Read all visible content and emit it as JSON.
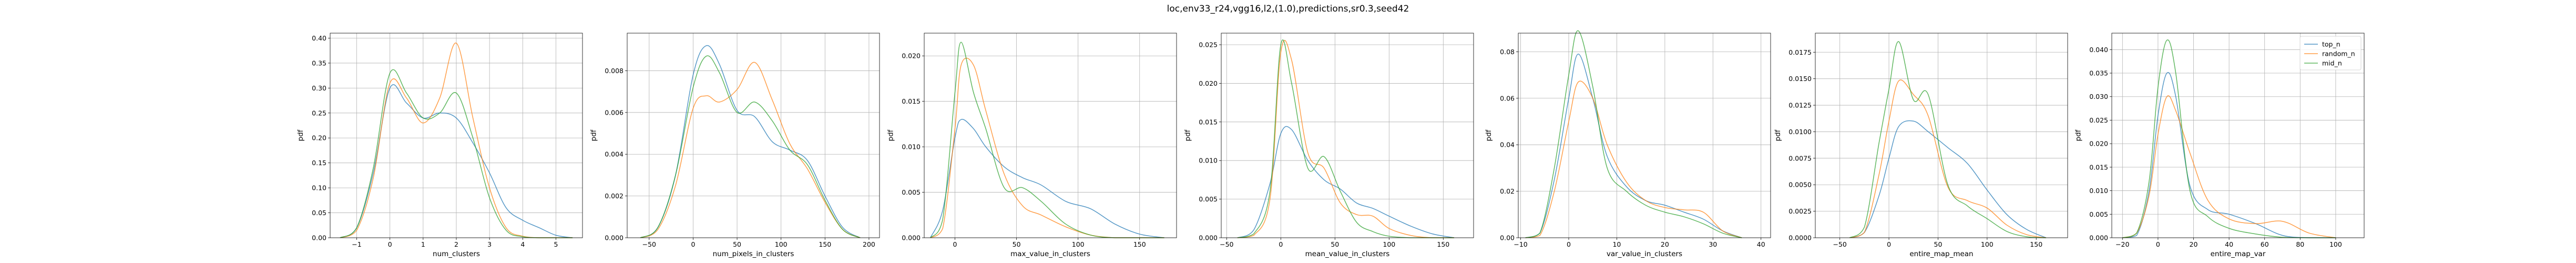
{
  "figure": {
    "title": "loc,env33_r24,vgg16,l2,(1.0),predictions,sr0.3,seed42"
  },
  "colors": {
    "top_n": "#1f77b4",
    "random_n": "#ff7f0e",
    "mid_n": "#2ca02c"
  },
  "chart_data": [
    {
      "type": "line",
      "title": "",
      "xlabel": "num_clusters",
      "ylabel": "pdf",
      "xlim": [
        -1.8,
        5.8
      ],
      "ylim": [
        0,
        0.41
      ],
      "xticks": [
        -1,
        0,
        1,
        2,
        3,
        4,
        5
      ],
      "yticks": [
        0.0,
        0.05,
        0.1,
        0.15,
        0.2,
        0.25,
        0.3,
        0.35,
        0.4
      ],
      "ytick_labels": [
        "0.00",
        "0.05",
        "0.10",
        "0.15",
        "0.20",
        "0.25",
        "0.30",
        "0.35",
        "0.40"
      ],
      "grid": true,
      "series": [
        {
          "name": "top_n",
          "x": [
            -1.5,
            -1,
            -0.5,
            0,
            0.5,
            1,
            1.5,
            2,
            2.5,
            3,
            3.5,
            4,
            4.5,
            5,
            5.5
          ],
          "values": [
            0.0,
            0.02,
            0.13,
            0.3,
            0.27,
            0.24,
            0.25,
            0.24,
            0.19,
            0.13,
            0.06,
            0.035,
            0.02,
            0.005,
            0.0
          ]
        },
        {
          "name": "random_n",
          "x": [
            -1.5,
            -1,
            -0.5,
            0,
            0.5,
            1,
            1.5,
            2,
            2.5,
            3,
            3.5,
            4,
            4.5,
            5,
            5.5
          ],
          "values": [
            0.0,
            0.015,
            0.12,
            0.31,
            0.28,
            0.23,
            0.28,
            0.39,
            0.24,
            0.1,
            0.02,
            0.003,
            0.0,
            0.0,
            0.0
          ]
        },
        {
          "name": "mid_n",
          "x": [
            -1.5,
            -1,
            -0.5,
            0,
            0.5,
            1,
            1.5,
            2,
            2.5,
            3,
            3.5,
            4,
            4.5,
            5,
            5.5
          ],
          "values": [
            0.0,
            0.02,
            0.14,
            0.33,
            0.29,
            0.24,
            0.25,
            0.29,
            0.2,
            0.08,
            0.015,
            0.002,
            0.0,
            0.0,
            0.0
          ]
        }
      ]
    },
    {
      "type": "line",
      "title": "",
      "xlabel": "num_pixels_in_clusters",
      "ylabel": "pdf",
      "xlim": [
        -75,
        212
      ],
      "ylim": [
        0,
        0.0098
      ],
      "xticks": [
        -50,
        0,
        50,
        100,
        150,
        200
      ],
      "yticks": [
        0.0,
        0.002,
        0.004,
        0.006,
        0.008
      ],
      "ytick_labels": [
        "0.000",
        "0.002",
        "0.004",
        "0.006",
        "0.008"
      ],
      "grid": true,
      "series": [
        {
          "name": "top_n",
          "x": [
            -60,
            -40,
            -20,
            0,
            15,
            30,
            50,
            70,
            90,
            110,
            130,
            150,
            170,
            190
          ],
          "values": [
            0.0,
            0.0005,
            0.003,
            0.0078,
            0.0092,
            0.0083,
            0.0061,
            0.0058,
            0.0046,
            0.0042,
            0.0037,
            0.002,
            0.0005,
            0.0
          ]
        },
        {
          "name": "random_n",
          "x": [
            -60,
            -40,
            -20,
            0,
            15,
            30,
            50,
            70,
            90,
            110,
            130,
            150,
            170,
            190
          ],
          "values": [
            0.0,
            0.0004,
            0.0025,
            0.0062,
            0.0068,
            0.0065,
            0.0071,
            0.0084,
            0.0066,
            0.0045,
            0.0033,
            0.0017,
            0.0004,
            0.0
          ]
        },
        {
          "name": "mid_n",
          "x": [
            -60,
            -40,
            -20,
            0,
            15,
            30,
            50,
            70,
            90,
            110,
            130,
            150,
            170,
            190
          ],
          "values": [
            0.0,
            0.0005,
            0.003,
            0.0072,
            0.0087,
            0.0079,
            0.006,
            0.0065,
            0.0056,
            0.0042,
            0.0035,
            0.0018,
            0.0004,
            0.0
          ]
        }
      ]
    },
    {
      "type": "line",
      "title": "",
      "xlabel": "max_value_in_clusters",
      "ylabel": "pdf",
      "xlim": [
        -25,
        180
      ],
      "ylim": [
        0,
        0.0225
      ],
      "xticks": [
        0,
        50,
        100,
        150
      ],
      "yticks": [
        0.0,
        0.005,
        0.01,
        0.015,
        0.02
      ],
      "ytick_labels": [
        "0.000",
        "0.005",
        "0.010",
        "0.015",
        "0.020"
      ],
      "grid": true,
      "series": [
        {
          "name": "top_n",
          "x": [
            -20,
            -10,
            0,
            5,
            15,
            25,
            40,
            55,
            70,
            90,
            110,
            130,
            150,
            170
          ],
          "values": [
            0.0,
            0.003,
            0.011,
            0.013,
            0.012,
            0.01,
            0.0078,
            0.0066,
            0.0058,
            0.004,
            0.0032,
            0.0015,
            0.0004,
            0.0
          ]
        },
        {
          "name": "random_n",
          "x": [
            -20,
            -10,
            0,
            5,
            15,
            25,
            40,
            55,
            70,
            90,
            110,
            130,
            150,
            170
          ],
          "values": [
            0.0,
            0.001,
            0.012,
            0.019,
            0.019,
            0.014,
            0.007,
            0.0035,
            0.0025,
            0.0012,
            0.0003,
            0.0,
            0.0,
            0.0
          ]
        },
        {
          "name": "mid_n",
          "x": [
            -20,
            -10,
            0,
            5,
            15,
            25,
            40,
            55,
            70,
            90,
            110,
            130,
            150,
            170
          ],
          "values": [
            0.0,
            0.002,
            0.016,
            0.0215,
            0.016,
            0.012,
            0.0055,
            0.0055,
            0.004,
            0.0015,
            0.0003,
            0.0,
            0.0,
            0.0
          ]
        }
      ]
    },
    {
      "type": "line",
      "title": "",
      "xlabel": "mean_value_in_clusters",
      "ylabel": "pdf",
      "xlim": [
        -55,
        178
      ],
      "ylim": [
        0,
        0.0265
      ],
      "xticks": [
        -50,
        0,
        50,
        100,
        150
      ],
      "yticks": [
        0.0,
        0.005,
        0.01,
        0.015,
        0.02,
        0.025
      ],
      "ytick_labels": [
        "0.000",
        "0.005",
        "0.010",
        "0.015",
        "0.020",
        "0.025"
      ],
      "grid": true,
      "series": [
        {
          "name": "top_n",
          "x": [
            -40,
            -25,
            -10,
            0,
            10,
            25,
            40,
            55,
            70,
            85,
            100,
            120,
            140,
            160
          ],
          "values": [
            0.0,
            0.001,
            0.007,
            0.0135,
            0.014,
            0.01,
            0.0075,
            0.0063,
            0.0045,
            0.0038,
            0.0028,
            0.0015,
            0.0005,
            0.0
          ]
        },
        {
          "name": "random_n",
          "x": [
            -40,
            -25,
            -10,
            0,
            10,
            25,
            40,
            55,
            70,
            85,
            100,
            120,
            140,
            160
          ],
          "values": [
            0.0,
            0.0003,
            0.005,
            0.024,
            0.023,
            0.011,
            0.009,
            0.0045,
            0.003,
            0.0028,
            0.0012,
            0.0003,
            0.0,
            0.0
          ]
        },
        {
          "name": "mid_n",
          "x": [
            -40,
            -25,
            -10,
            0,
            10,
            25,
            40,
            55,
            70,
            85,
            100,
            120,
            140,
            160
          ],
          "values": [
            0.0,
            0.0005,
            0.006,
            0.025,
            0.02,
            0.009,
            0.0105,
            0.006,
            0.002,
            0.0008,
            0.0002,
            0.0,
            0.0,
            0.0
          ]
        }
      ]
    },
    {
      "type": "line",
      "title": "",
      "xlabel": "var_value_in_clusters",
      "ylabel": "pdf",
      "xlim": [
        -10.5,
        42
      ],
      "ylim": [
        0,
        0.088
      ],
      "xticks": [
        -10,
        0,
        10,
        20,
        30,
        40
      ],
      "yticks": [
        0.0,
        0.02,
        0.04,
        0.06,
        0.08
      ],
      "ytick_labels": [
        "0.00",
        "0.02",
        "0.04",
        "0.06",
        "0.08"
      ],
      "grid": true,
      "series": [
        {
          "name": "top_n",
          "x": [
            -9,
            -6,
            -3,
            0,
            2,
            5,
            8,
            12,
            16,
            20,
            24,
            28,
            32,
            36
          ],
          "values": [
            0.0,
            0.002,
            0.025,
            0.06,
            0.079,
            0.06,
            0.035,
            0.022,
            0.016,
            0.014,
            0.011,
            0.008,
            0.003,
            0.0
          ]
        },
        {
          "name": "random_n",
          "x": [
            -9,
            -6,
            -3,
            0,
            2,
            5,
            8,
            12,
            16,
            20,
            24,
            28,
            32,
            36
          ],
          "values": [
            0.0,
            0.001,
            0.02,
            0.05,
            0.067,
            0.06,
            0.04,
            0.024,
            0.016,
            0.013,
            0.012,
            0.011,
            0.003,
            0.0
          ]
        },
        {
          "name": "mid_n",
          "x": [
            -9,
            -6,
            -3,
            0,
            2,
            5,
            8,
            12,
            16,
            20,
            24,
            28,
            32,
            36
          ],
          "values": [
            0.0,
            0.002,
            0.03,
            0.07,
            0.089,
            0.065,
            0.03,
            0.02,
            0.014,
            0.011,
            0.009,
            0.006,
            0.002,
            0.0
          ]
        }
      ]
    },
    {
      "type": "line",
      "title": "",
      "xlabel": "entire_map_mean",
      "ylabel": "pdf",
      "xlim": [
        -75,
        182
      ],
      "ylim": [
        0,
        0.0193
      ],
      "xticks": [
        -50,
        0,
        50,
        100,
        150
      ],
      "yticks": [
        0.0,
        0.0025,
        0.005,
        0.0075,
        0.01,
        0.0125,
        0.015,
        0.0175
      ],
      "ytick_labels": [
        "0.0000",
        "0.0025",
        "0.0050",
        "0.0075",
        "0.0100",
        "0.0125",
        "0.0150",
        "0.0175"
      ],
      "grid": true,
      "series": [
        {
          "name": "top_n",
          "x": [
            -40,
            -25,
            -10,
            0,
            10,
            25,
            40,
            60,
            80,
            100,
            120,
            140,
            160
          ],
          "values": [
            0.0,
            0.0005,
            0.004,
            0.0075,
            0.0105,
            0.011,
            0.01,
            0.0085,
            0.007,
            0.0045,
            0.0022,
            0.0008,
            0.0
          ]
        },
        {
          "name": "random_n",
          "x": [
            -40,
            -25,
            -10,
            0,
            10,
            25,
            40,
            60,
            80,
            100,
            120,
            140,
            160
          ],
          "values": [
            0.0,
            0.0005,
            0.006,
            0.011,
            0.0148,
            0.0135,
            0.0115,
            0.0048,
            0.0035,
            0.0028,
            0.0012,
            0.0003,
            0.0
          ]
        },
        {
          "name": "mid_n",
          "x": [
            -40,
            -25,
            -10,
            0,
            10,
            25,
            40,
            60,
            80,
            100,
            120,
            140,
            160
          ],
          "values": [
            0.0,
            0.001,
            0.009,
            0.014,
            0.0185,
            0.013,
            0.0135,
            0.005,
            0.003,
            0.0018,
            0.0006,
            0.0001,
            0.0
          ]
        }
      ]
    },
    {
      "type": "line",
      "title": "",
      "xlabel": "entire_map_var",
      "ylabel": "pdf",
      "xlim": [
        -26,
        116
      ],
      "ylim": [
        0,
        0.0435
      ],
      "xticks": [
        -20,
        0,
        20,
        40,
        60,
        80,
        100
      ],
      "yticks": [
        0.0,
        0.005,
        0.01,
        0.015,
        0.02,
        0.025,
        0.03,
        0.035,
        0.04
      ],
      "ytick_labels": [
        "0.000",
        "0.005",
        "0.010",
        "0.015",
        "0.020",
        "0.025",
        "0.030",
        "0.035",
        "0.040"
      ],
      "grid": true,
      "legend": {
        "placement": "top-right",
        "entries": [
          "top_n",
          "random_n",
          "mid_n"
        ]
      },
      "series": [
        {
          "name": "top_n",
          "x": [
            -20,
            -12,
            -5,
            0,
            5,
            10,
            18,
            28,
            40,
            55,
            70,
            85,
            100
          ],
          "values": [
            0.0,
            0.0005,
            0.01,
            0.026,
            0.035,
            0.03,
            0.011,
            0.006,
            0.005,
            0.003,
            0.0005,
            0.0,
            0.0
          ]
        },
        {
          "name": "random_n",
          "x": [
            -20,
            -12,
            -5,
            0,
            5,
            10,
            18,
            28,
            40,
            55,
            70,
            85,
            100
          ],
          "values": [
            0.0,
            0.001,
            0.009,
            0.022,
            0.03,
            0.027,
            0.018,
            0.008,
            0.004,
            0.003,
            0.0035,
            0.001,
            0.0
          ]
        },
        {
          "name": "mid_n",
          "x": [
            -20,
            -12,
            -5,
            0,
            5,
            10,
            18,
            28,
            40,
            55,
            70,
            85,
            100
          ],
          "values": [
            0.0,
            0.001,
            0.012,
            0.032,
            0.042,
            0.035,
            0.01,
            0.0045,
            0.002,
            0.0008,
            0.0001,
            0.0,
            0.0
          ]
        }
      ]
    }
  ]
}
